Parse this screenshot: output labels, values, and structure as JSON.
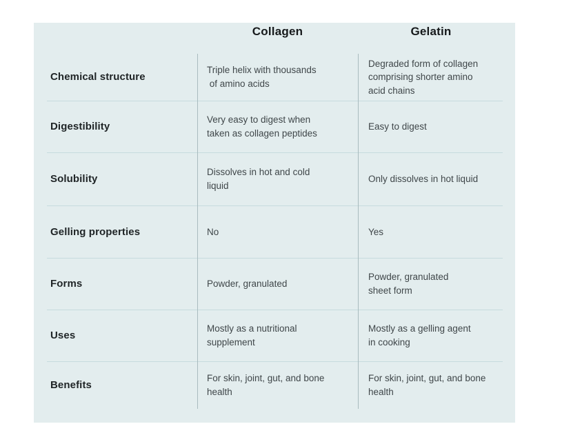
{
  "colors": {
    "page_bg": "#ffffff",
    "table_bg": "#e3edee",
    "h_divider": "#c6dbde",
    "v_divider": "#a9bbbe",
    "head_color": "#16191b",
    "label_color": "#1f2426",
    "body_color": "#3f4649"
  },
  "table": {
    "headers": {
      "collagen": "Collagen",
      "gelatin": "Gelatin"
    },
    "rows": [
      {
        "label": "Chemical structure",
        "collagen": "Triple helix with thousands\n of amino acids",
        "gelatin": "Degraded form of collagen\ncomprising shorter amino\nacid chains"
      },
      {
        "label": "Digestibility",
        "collagen": "Very easy to digest when\ntaken as collagen peptides",
        "gelatin": "Easy to digest"
      },
      {
        "label": "Solubility",
        "collagen": "Dissolves in hot and cold\nliquid",
        "gelatin": "Only dissolves in hot liquid"
      },
      {
        "label": "Gelling properties",
        "collagen": "No",
        "gelatin": "Yes"
      },
      {
        "label": "Forms",
        "collagen": "Powder, granulated",
        "gelatin": "Powder, granulated\nsheet form"
      },
      {
        "label": "Uses",
        "collagen": "Mostly as a nutritional\nsupplement",
        "gelatin": "Mostly as a gelling agent\nin cooking"
      },
      {
        "label": "Benefits",
        "collagen": "For skin, joint, gut, and bone\nhealth",
        "gelatin": "For skin, joint, gut, and bone\nhealth"
      }
    ]
  }
}
